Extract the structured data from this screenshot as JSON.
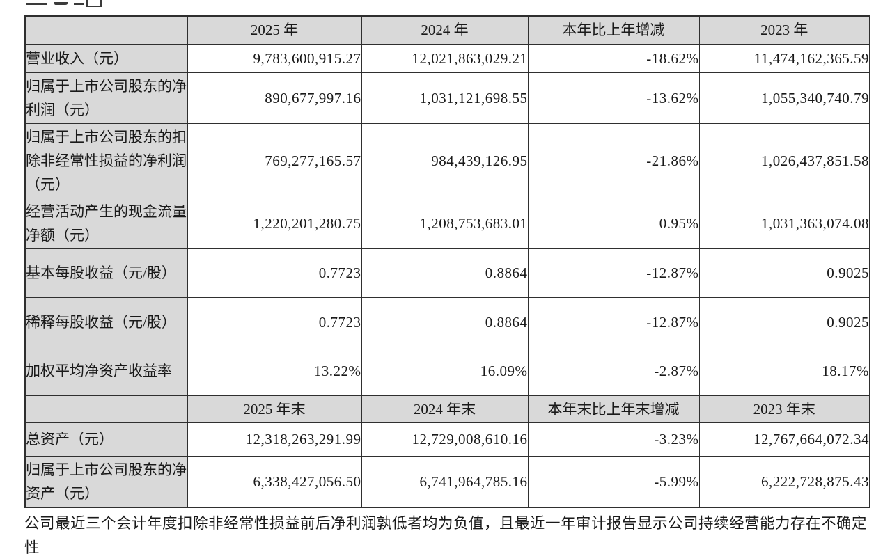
{
  "document": {
    "footnote": "公司最近三个会计年度扣除非经常性损益前后净利润孰低者均为负值，且最近一年审计报告显示公司持续经营能力存在不确定性"
  },
  "table": {
    "style": {
      "header_fill": "#d9d9d9",
      "border_color": "#2f2f2f",
      "text_color": "#1a1a1a"
    },
    "sections": [
      {
        "header": [
          "",
          "2025 年",
          "2024 年",
          "本年比上年增减",
          "2023 年"
        ],
        "rows": [
          [
            "营业收入（元）",
            "9,783,600,915.27",
            "12,021,863,029.21",
            "-18.62%",
            "11,474,162,365.59"
          ],
          [
            "归属于上市公司股东的净利润（元）",
            "890,677,997.16",
            "1,031,121,698.55",
            "-13.62%",
            "1,055,340,740.79"
          ],
          [
            "归属于上市公司股东的扣除非经常性损益的净利润（元）",
            "769,277,165.57",
            "984,439,126.95",
            "-21.86%",
            "1,026,437,851.58"
          ],
          [
            "经营活动产生的现金流量净额（元）",
            "1,220,201,280.75",
            "1,208,753,683.01",
            "0.95%",
            "1,031,363,074.08"
          ],
          [
            "基本每股收益（元/股）",
            "0.7723",
            "0.8864",
            "-12.87%",
            "0.9025"
          ],
          [
            "稀释每股收益（元/股）",
            "0.7723",
            "0.8864",
            "-12.87%",
            "0.9025"
          ],
          [
            "加权平均净资产收益率",
            "13.22%",
            "16.09%",
            "-2.87%",
            "18.17%"
          ]
        ]
      },
      {
        "header": [
          "",
          "2025 年末",
          "2024 年末",
          "本年末比上年末增减",
          "2023 年末"
        ],
        "rows": [
          [
            "总资产（元）",
            "12,318,263,291.99",
            "12,729,008,610.16",
            "-3.23%",
            "12,767,664,072.34"
          ],
          [
            "归属于上市公司股东的净资产（元）",
            "6,338,427,056.50",
            "6,741,964,785.16",
            "-5.99%",
            "6,222,728,875.43"
          ]
        ]
      }
    ]
  }
}
